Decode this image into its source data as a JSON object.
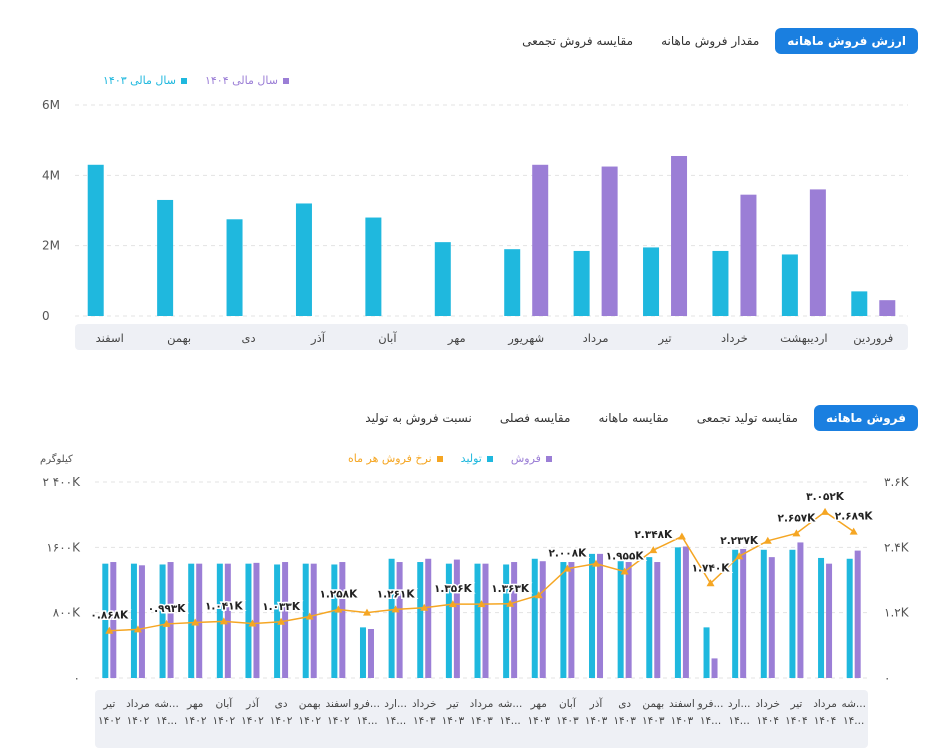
{
  "tabs_top": [
    {
      "label": "ارزش فروش ماهانه",
      "active": true
    },
    {
      "label": "مقدار فروش ماهانه",
      "active": false
    },
    {
      "label": "مقایسه فروش تجمعی",
      "active": false
    }
  ],
  "tabs_bottom": [
    {
      "label": "فروش ماهانه",
      "active": true
    },
    {
      "label": "مقایسه تولید تجمعی",
      "active": false
    },
    {
      "label": "مقایسه ماهانه",
      "active": false
    },
    {
      "label": "مقایسه فصلی",
      "active": false
    },
    {
      "label": "نسبت فروش به تولید",
      "active": false
    }
  ],
  "colors": {
    "cyan": "#1fb8de",
    "purple": "#9b7ed6",
    "orange": "#f5a623",
    "accent": "#1a7fe0"
  },
  "chart_data": [
    {
      "type": "bar",
      "legend": [
        {
          "name": "سال مالی ۱۴۰۴",
          "color": "#9b7ed6"
        },
        {
          "name": "سال مالی ۱۴۰۳",
          "color": "#1fb8de"
        }
      ],
      "yticks": [
        "6M",
        "4M",
        "2M",
        "0"
      ],
      "ylim": [
        0,
        6000000
      ],
      "categories": [
        "فروردین",
        "اردیبهشت",
        "خرداد",
        "تیر",
        "مرداد",
        "شهریور",
        "مهر",
        "آبان",
        "آذر",
        "دی",
        "بهمن",
        "اسفند"
      ],
      "series": [
        {
          "name": "سال مالی ۱۴۰۳",
          "values": [
            700000,
            1750000,
            1850000,
            1950000,
            1850000,
            1900000,
            2100000,
            2800000,
            3200000,
            2750000,
            3300000,
            4300000
          ]
        },
        {
          "name": "سال مالی ۱۴۰۴",
          "values": [
            450000,
            3600000,
            3450000,
            4550000,
            4250000,
            4300000,
            null,
            null,
            null,
            null,
            null,
            null
          ]
        }
      ],
      "grid": true,
      "legend_position": "top-left"
    },
    {
      "type": "bar",
      "legend": [
        {
          "name": "فروش",
          "color": "#9b7ed6"
        },
        {
          "name": "تولید",
          "color": "#1fb8de"
        },
        {
          "name": "نرخ فروش هر ماه",
          "color": "#f5a623"
        }
      ],
      "ylabel_left": "کیلوگرم",
      "yticks_left": [
        "۲ ۴۰۰K",
        "۱۶۰۰K",
        "۸۰۰K",
        "۰"
      ],
      "ylim_left": [
        0,
        2400000
      ],
      "yticks_right": [
        "۳.۶K",
        "۲.۴K",
        "۱.۲K",
        "۰"
      ],
      "ylim_right": [
        0,
        3600
      ],
      "categories": [
        {
          "l1": "تیر",
          "l2": "۱۴۰۲"
        },
        {
          "l1": "مرداد",
          "l2": "۱۴۰۲"
        },
        {
          "l1": "شه...",
          "l2": "۱۴..."
        },
        {
          "l1": "مهر",
          "l2": "۱۴۰۲"
        },
        {
          "l1": "آبان",
          "l2": "۱۴۰۲"
        },
        {
          "l1": "آذر",
          "l2": "۱۴۰۲"
        },
        {
          "l1": "دی",
          "l2": "۱۴۰۲"
        },
        {
          "l1": "بهمن",
          "l2": "۱۴۰۲"
        },
        {
          "l1": "اسفند",
          "l2": "۱۴۰۲"
        },
        {
          "l1": "فرو...",
          "l2": "۱۴..."
        },
        {
          "l1": "ارد...",
          "l2": "۱۴..."
        },
        {
          "l1": "خرداد",
          "l2": "۱۴۰۳"
        },
        {
          "l1": "تیر",
          "l2": "۱۴۰۳"
        },
        {
          "l1": "مرداد",
          "l2": "۱۴۰۳"
        },
        {
          "l1": "شه...",
          "l2": "۱۴..."
        },
        {
          "l1": "مهر",
          "l2": "۱۴۰۳"
        },
        {
          "l1": "آبان",
          "l2": "۱۴۰۳"
        },
        {
          "l1": "آذر",
          "l2": "۱۴۰۳"
        },
        {
          "l1": "دی",
          "l2": "۱۴۰۳"
        },
        {
          "l1": "بهمن",
          "l2": "۱۴۰۳"
        },
        {
          "l1": "اسفند",
          "l2": "۱۴۰۳"
        },
        {
          "l1": "فرو...",
          "l2": "۱۴..."
        },
        {
          "l1": "ارد...",
          "l2": "۱۴..."
        },
        {
          "l1": "خرداد",
          "l2": "۱۴۰۴"
        },
        {
          "l1": "تیر",
          "l2": "۱۴۰۴"
        },
        {
          "l1": "مرداد",
          "l2": "۱۴۰۴"
        },
        {
          "l1": "شه...",
          "l2": "۱۴..."
        }
      ],
      "series": [
        {
          "name": "تولید",
          "axis": "left",
          "values": [
            1400000,
            1400000,
            1390000,
            1400000,
            1400000,
            1400000,
            1390000,
            1400000,
            1390000,
            620000,
            1460000,
            1420000,
            1400000,
            1400000,
            1390000,
            1460000,
            1420000,
            1520000,
            1430000,
            1480000,
            1600000,
            620000,
            1570000,
            1570000,
            1570000,
            1470000,
            1460000
          ]
        },
        {
          "name": "فروش",
          "axis": "left",
          "values": [
            1420000,
            1380000,
            1420000,
            1400000,
            1400000,
            1410000,
            1420000,
            1400000,
            1420000,
            600000,
            1420000,
            1460000,
            1450000,
            1400000,
            1420000,
            1430000,
            1420000,
            1520000,
            1420000,
            1420000,
            1610000,
            240000,
            1580000,
            1480000,
            1660000,
            1400000,
            1560000
          ]
        },
        {
          "name": "نرخ فروش هر ماه",
          "axis": "right",
          "type": "line",
          "values": [
            868,
            892,
            993,
            1020,
            1041,
            1000,
            1033,
            1130,
            1258,
            1200,
            1261,
            1290,
            1356,
            1356,
            1363,
            1520,
            2008,
            2100,
            1955,
            2348,
            2600,
            1740,
            2237,
            2520,
            2657,
            3052,
            2689
          ]
        }
      ],
      "data_labels": [
        {
          "index": 0,
          "text": "۰.۸۶۸K"
        },
        {
          "index": 2,
          "text": "۰.۹۹۳K"
        },
        {
          "index": 4,
          "text": "۱.۰۴۱K"
        },
        {
          "index": 6,
          "text": "۱.۰۳۳K"
        },
        {
          "index": 8,
          "text": "۱.۲۵۸K"
        },
        {
          "index": 10,
          "text": "۱.۲۶۱K"
        },
        {
          "index": 12,
          "text": "۱.۳۵۶K"
        },
        {
          "index": 14,
          "text": "۱.۳۶۳K"
        },
        {
          "index": 16,
          "text": "۲.۰۰۸K"
        },
        {
          "index": 18,
          "text": "۱.۹۵۵K"
        },
        {
          "index": 19,
          "text": "۲.۳۴۸K"
        },
        {
          "index": 21,
          "text": "۱.۷۴۰K"
        },
        {
          "index": 22,
          "text": "۲.۲۳۷K"
        },
        {
          "index": 24,
          "text": "۲.۶۵۷K"
        },
        {
          "index": 25,
          "text": "۳.۰۵۲K"
        },
        {
          "index": 26,
          "text": "۲.۶۸۹K"
        }
      ],
      "grid": true,
      "legend_position": "top-left"
    }
  ]
}
